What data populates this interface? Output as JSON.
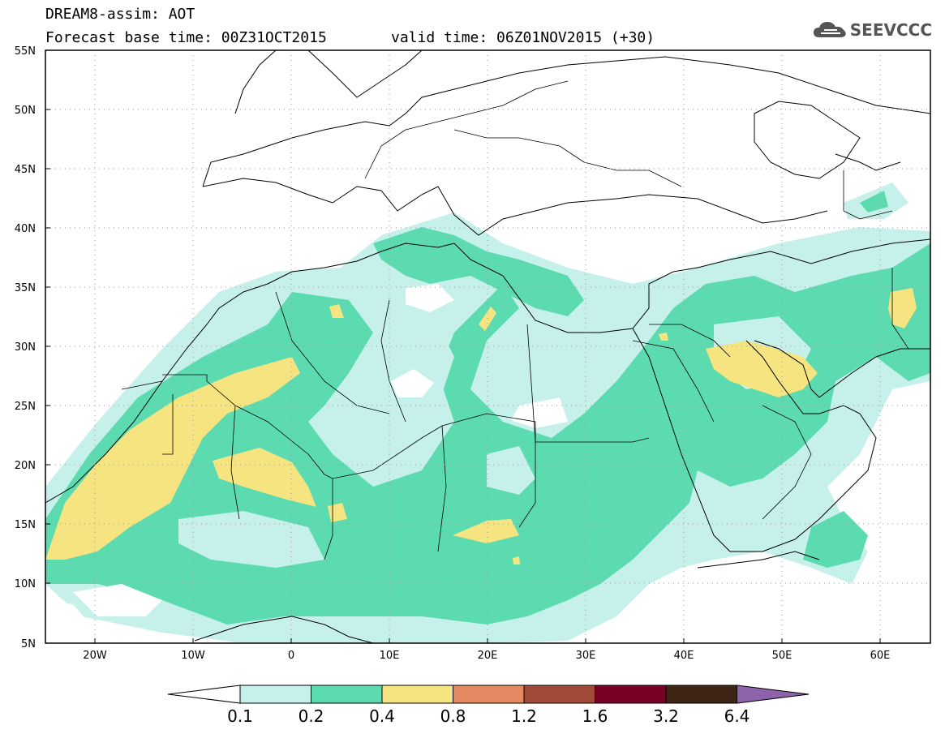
{
  "header": {
    "title": "DREAM8-assim: AOT",
    "base_time": "Forecast base time: 00Z31OCT2015",
    "valid_time": "valid time: 06Z01NOV2015 (+30)"
  },
  "brand": {
    "name": "SEEVCCC",
    "icon": "cloud-icon"
  },
  "map": {
    "lon_range": [
      -25,
      65
    ],
    "lat_range": [
      5,
      55
    ],
    "lat_ticks": [
      "5N",
      "10N",
      "15N",
      "20N",
      "25N",
      "30N",
      "35N",
      "40N",
      "45N",
      "50N",
      "55N"
    ],
    "lon_ticks": [
      "20W",
      "10W",
      "0",
      "10E",
      "20E",
      "30E",
      "40E",
      "50E",
      "60E"
    ]
  },
  "colorbar": {
    "levels": [
      "0.1",
      "0.2",
      "0.4",
      "0.8",
      "1.2",
      "1.6",
      "3.2",
      "6.4"
    ],
    "colors": [
      "#ffffff",
      "#c6f0ea",
      "#5ddbb0",
      "#f5e47f",
      "#e48a62",
      "#a24a39",
      "#7a0026",
      "#3e2414",
      "#8f63aa"
    ]
  }
}
